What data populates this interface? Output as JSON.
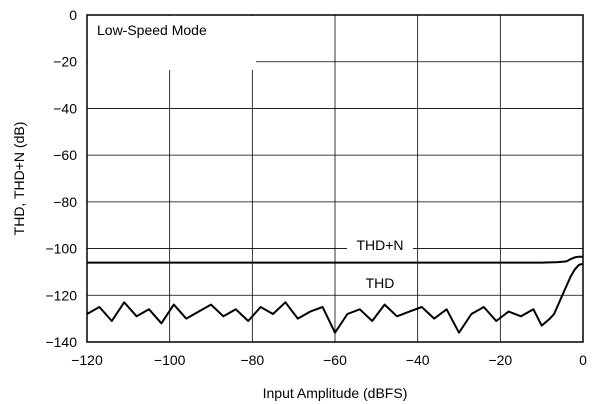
{
  "chart_data": {
    "type": "line",
    "title": "",
    "xlabel": "Input Amplitude (dBFS)",
    "ylabel": "THD, THD+N (dB)",
    "xlim": [
      -120,
      0
    ],
    "ylim": [
      -140,
      0
    ],
    "x_ticks": [
      -120,
      -100,
      -80,
      -60,
      -40,
      -20,
      0
    ],
    "y_ticks": [
      0,
      -20,
      -40,
      -60,
      -80,
      -100,
      -120,
      -140
    ],
    "x_tick_labels": [
      "−120",
      "−100",
      "−80",
      "−60",
      "−40",
      "−20",
      "0"
    ],
    "y_tick_labels": [
      "0",
      "−20",
      "−40",
      "−60",
      "−80",
      "−100",
      "−120",
      "−140"
    ],
    "grid": true,
    "annotations": [
      {
        "text": "Low-Speed Mode",
        "anchor": "top-left"
      },
      {
        "text": "THD+N",
        "series": "THD+N"
      },
      {
        "text": "THD",
        "series": "THD"
      }
    ],
    "series": [
      {
        "name": "THD+N",
        "x": [
          -120,
          -110,
          -100,
          -90,
          -80,
          -70,
          -60,
          -50,
          -40,
          -30,
          -20,
          -10,
          -6,
          -4,
          -3,
          -2,
          -1,
          0
        ],
        "y": [
          -106,
          -106,
          -106,
          -106,
          -106,
          -106,
          -106,
          -106,
          -106,
          -106,
          -106,
          -106,
          -105.8,
          -105.5,
          -104.5,
          -103.8,
          -103.5,
          -103.5
        ]
      },
      {
        "name": "THD",
        "x": [
          -120,
          -117,
          -114,
          -111,
          -108,
          -105,
          -102,
          -99,
          -96,
          -93,
          -90,
          -87,
          -84,
          -81,
          -78,
          -75,
          -72,
          -69,
          -66,
          -63,
          -60,
          -57,
          -54,
          -51,
          -48,
          -45,
          -42,
          -39,
          -36,
          -33,
          -30,
          -27,
          -24,
          -21,
          -18,
          -15,
          -12,
          -10,
          -8,
          -7,
          -6,
          -5,
          -4,
          -3,
          -2,
          -1,
          0
        ],
        "y": [
          -128,
          -125,
          -131,
          -123,
          -129,
          -126,
          -132,
          -124,
          -130,
          -127,
          -124,
          -129,
          -126,
          -131,
          -125,
          -128,
          -123,
          -130,
          -127,
          -125,
          -136,
          -128,
          -126,
          -131,
          -124,
          -129,
          -127,
          -125,
          -130,
          -126,
          -136,
          -128,
          -125,
          -131,
          -127,
          -129,
          -126,
          -133,
          -130,
          -128,
          -124,
          -120,
          -116,
          -112,
          -109,
          -107,
          -106.5
        ]
      }
    ]
  }
}
